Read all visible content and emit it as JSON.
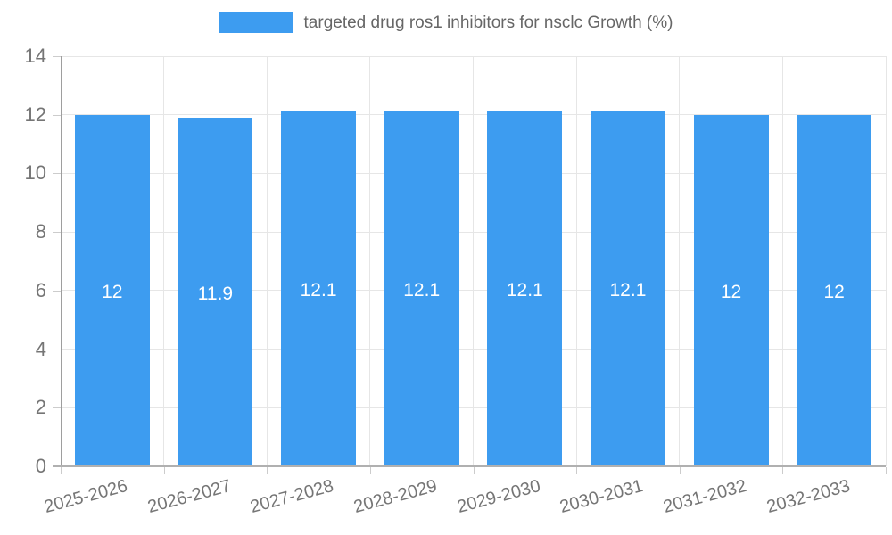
{
  "chart_data": {
    "type": "bar",
    "title": "targeted drug ros1 inhibitors for nsclc Growth (%)",
    "categories": [
      "2025-2026",
      "2026-2027",
      "2027-2028",
      "2028-2029",
      "2029-2030",
      "2030-2031",
      "2031-2032",
      "2032-2033"
    ],
    "values": [
      12,
      11.9,
      12.1,
      12.1,
      12.1,
      12.1,
      12,
      12
    ],
    "value_labels": [
      "12",
      "11.9",
      "12.1",
      "12.1",
      "12.1",
      "12.1",
      "12",
      "12"
    ],
    "xlabel": "",
    "ylabel": "",
    "ylim": [
      0,
      14
    ],
    "ytick_step": 2,
    "ytick_labels": [
      "0",
      "2",
      "4",
      "6",
      "8",
      "10",
      "12",
      "14"
    ],
    "grid": true,
    "legend_position": "top",
    "colors": {
      "bar": "#3D9CF0",
      "value_label": "#ffffff",
      "axis_text": "#757575",
      "legend_text": "#666666",
      "gridline": "#e6e6e6",
      "axis_line": "#b0b0b0"
    }
  }
}
